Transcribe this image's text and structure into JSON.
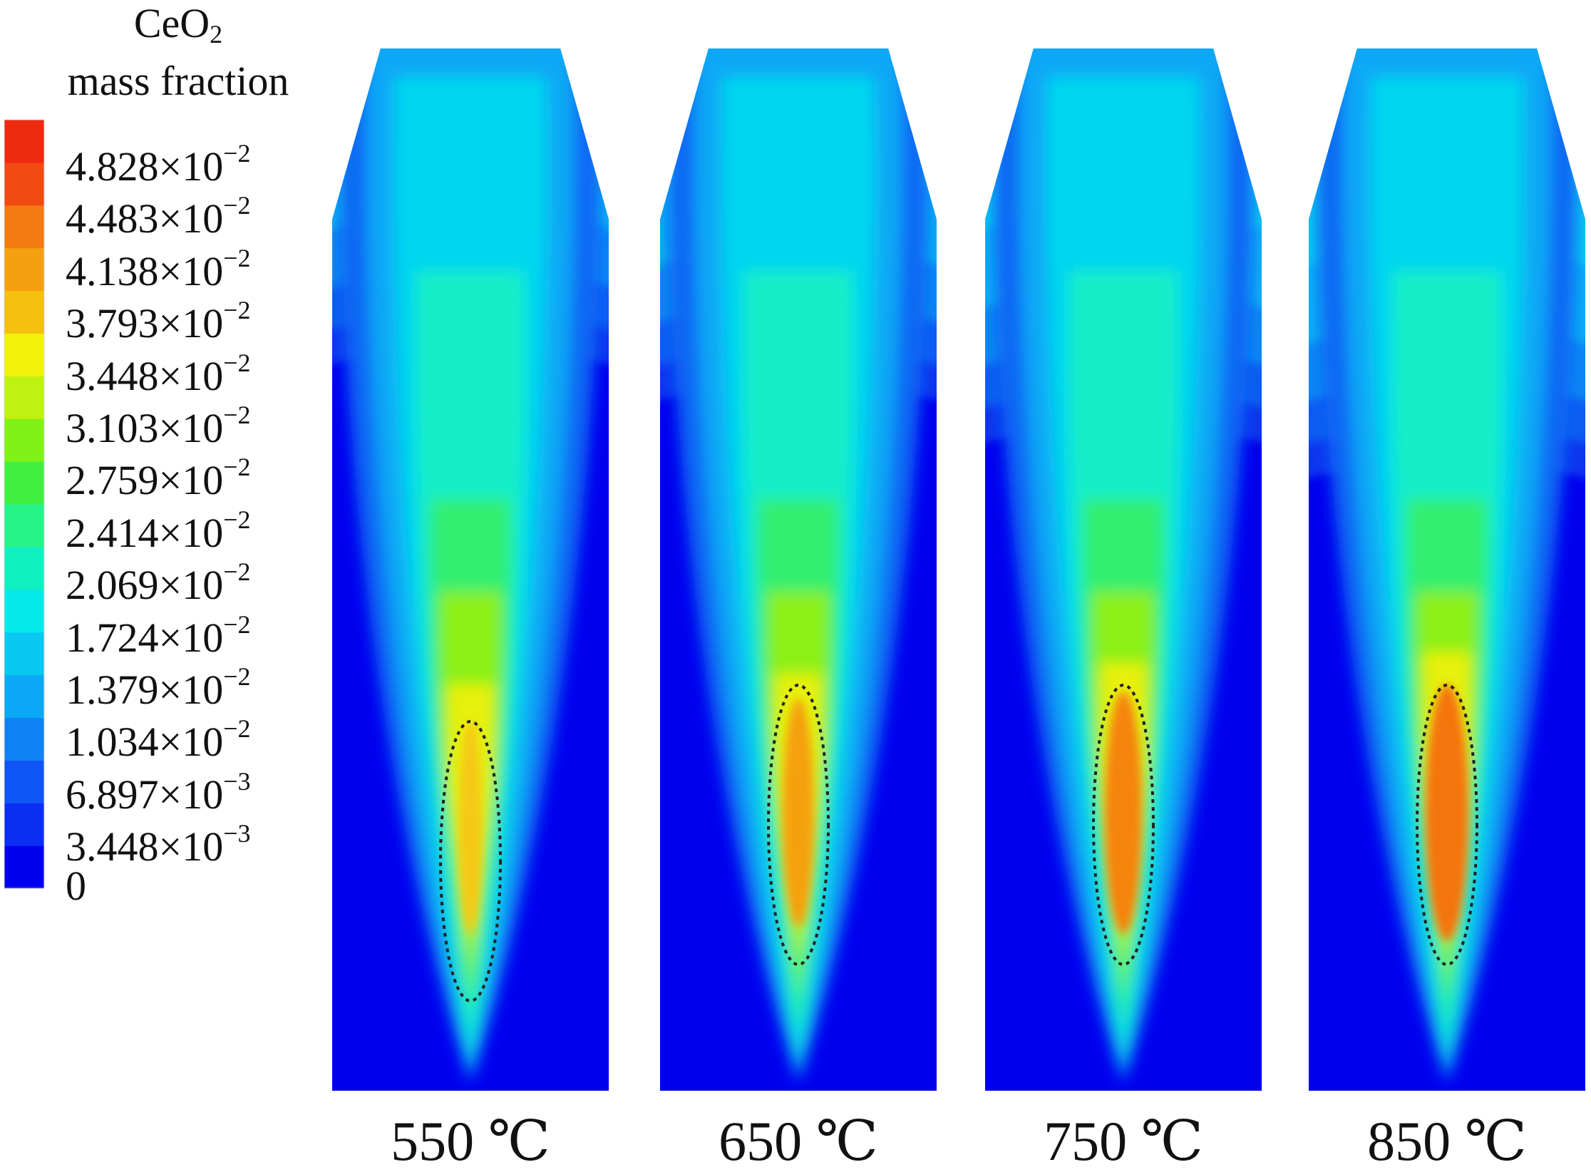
{
  "legend": {
    "title_main": "CeO",
    "title_sub": "2",
    "title_line2": "mass fraction",
    "ticks": [
      {
        "mantissa": "4.828×10",
        "exp": "−2"
      },
      {
        "mantissa": "4.483×10",
        "exp": "−2"
      },
      {
        "mantissa": "4.138×10",
        "exp": "−2"
      },
      {
        "mantissa": "3.793×10",
        "exp": "−2"
      },
      {
        "mantissa": "3.448×10",
        "exp": "−2"
      },
      {
        "mantissa": "3.103×10",
        "exp": "−2"
      },
      {
        "mantissa": "2.759×10",
        "exp": "−2"
      },
      {
        "mantissa": "2.414×10",
        "exp": "−2"
      },
      {
        "mantissa": "2.069×10",
        "exp": "−2"
      },
      {
        "mantissa": "1.724×10",
        "exp": "−2"
      },
      {
        "mantissa": "1.379×10",
        "exp": "−2"
      },
      {
        "mantissa": "1.034×10",
        "exp": "−2"
      },
      {
        "mantissa": "6.897×10",
        "exp": "−3"
      },
      {
        "mantissa": "3.448×10",
        "exp": "−3"
      },
      {
        "mantissa": "0",
        "exp": ""
      }
    ],
    "colors": [
      "#0000ee",
      "#0a2ef2",
      "#0e55f3",
      "#0f82f4",
      "#0ca8f5",
      "#08c8f2",
      "#05e8ea",
      "#10f0c0",
      "#28f28a",
      "#40f040",
      "#80f218",
      "#bff210",
      "#f2f20a",
      "#f5c010",
      "#f5a010",
      "#f57a10",
      "#f24a10",
      "#ee2a10"
    ]
  },
  "panels": [
    {
      "label": "550 ℃",
      "temp": 550
    },
    {
      "label": "650 ℃",
      "temp": 650
    },
    {
      "label": "750 ℃",
      "temp": 750
    },
    {
      "label": "850 ℃",
      "temp": 850
    }
  ]
}
